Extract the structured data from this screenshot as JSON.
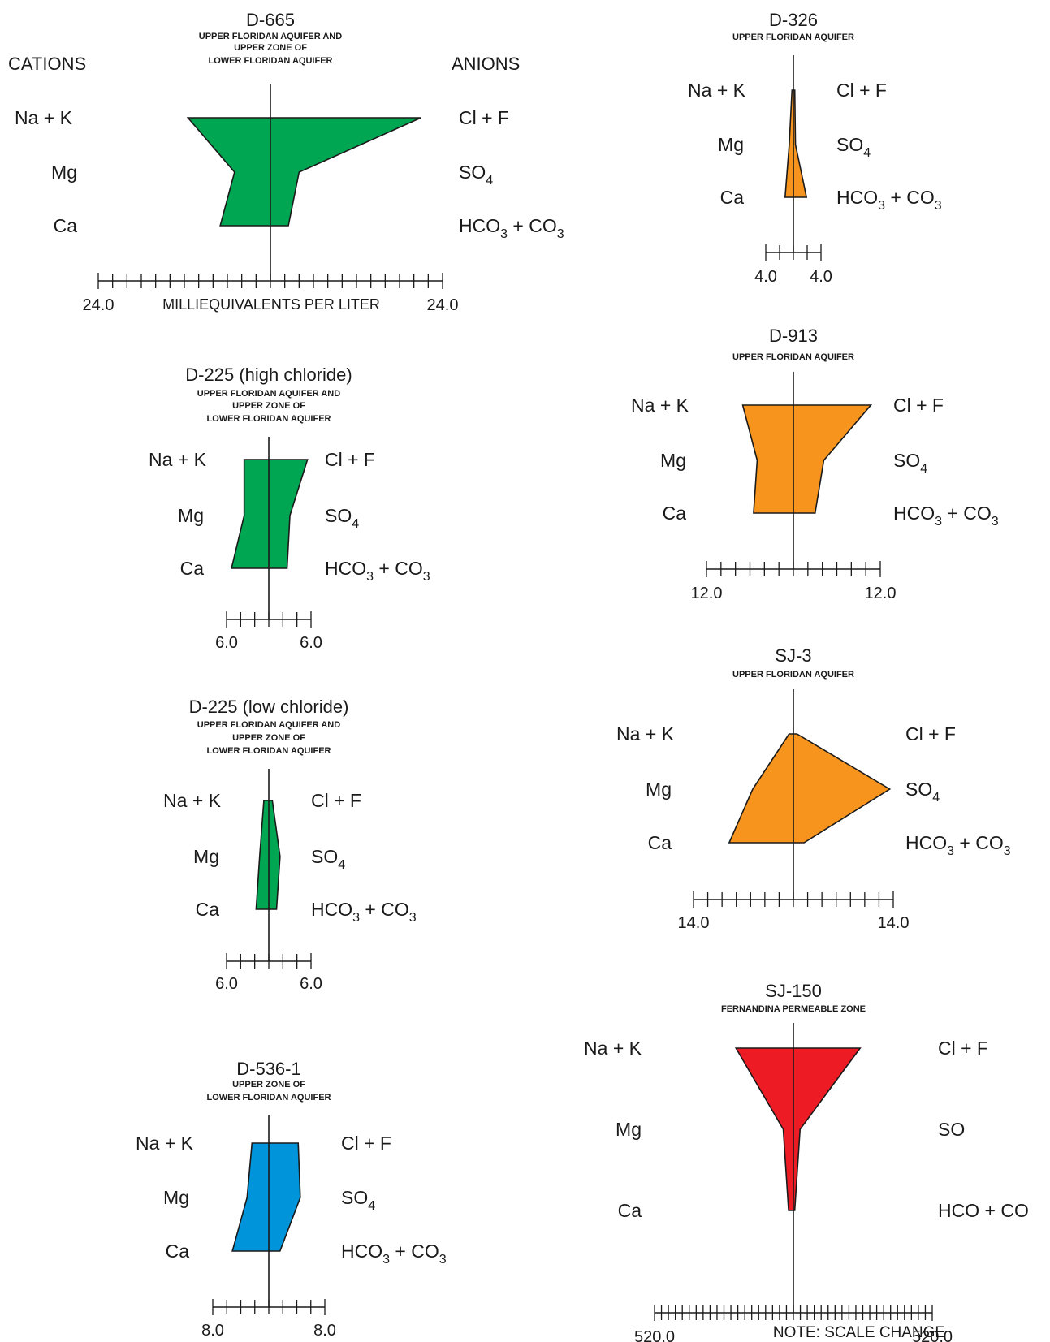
{
  "header": {
    "cations": "CATIONS",
    "anions": "ANIONS",
    "axis_label": "MILLIEQUIVALENTS PER LITER"
  },
  "note": "NOTE: SCALE CHANGE",
  "diagrams": [
    {
      "id": "D-665",
      "title": "D-665",
      "subtitle": [
        "UPPER FLORIDAN AQUIFER AND",
        "UPPER ZONE OF",
        "LOWER FLORIDAN AQUIFER"
      ],
      "scale": "24.0",
      "scale_max": 24,
      "color": "#00a651",
      "cations": {
        "Na + K": 11.5,
        "Mg": 5.0,
        "Ca": 7.0
      },
      "anions": {
        "Cl + F": 21.0,
        "SO4": 4.0,
        "HCO3 + CO3": 2.5
      },
      "labels": {
        "na_k": "Na + K",
        "mg": "Mg",
        "ca": "Ca",
        "cl_f": "Cl + F",
        "so4_base": "SO",
        "so4_sub": "4",
        "hco3_a": "HCO",
        "hco3_sub1": "3",
        "hco3_b": " + CO",
        "hco3_sub2": "3"
      }
    },
    {
      "id": "D-225H",
      "title": "D-225 (high chloride)",
      "subtitle": [
        "UPPER FLORIDAN AQUIFER AND",
        "UPPER ZONE OF",
        "LOWER FLORIDAN AQUIFER"
      ],
      "scale": "6.0",
      "scale_max": 6,
      "color": "#00a651",
      "cations": {
        "Na + K": 3.5,
        "Mg": 3.5,
        "Ca": 5.3
      },
      "anions": {
        "Cl + F": 5.5,
        "SO4": 3.0,
        "HCO3 + CO3": 2.6
      },
      "labels": {
        "na_k": "Na + K",
        "mg": "Mg",
        "ca": "Ca",
        "cl_f": "Cl + F",
        "so4_base": "SO",
        "so4_sub": "4",
        "hco3_a": "HCO",
        "hco3_sub1": "3",
        "hco3_b": " + CO",
        "hco3_sub2": "3"
      }
    },
    {
      "id": "D-225L",
      "title": "D-225 (low chloride)",
      "subtitle": [
        "UPPER FLORIDAN AQUIFER AND",
        "UPPER ZONE OF",
        "LOWER FLORIDAN AQUIFER"
      ],
      "scale": "6.0",
      "scale_max": 6,
      "color": "#00a651",
      "cations": {
        "Na + K": 0.7,
        "Mg": 1.3,
        "Ca": 1.8
      },
      "anions": {
        "Cl + F": 0.5,
        "SO4": 1.6,
        "HCO3 + CO3": 1.1
      },
      "labels": {
        "na_k": "Na + K",
        "mg": "Mg",
        "ca": "Ca",
        "cl_f": "Cl + F",
        "so4_base": "SO",
        "so4_sub": "4",
        "hco3_a": "HCO",
        "hco3_sub1": "3",
        "hco3_b": " + CO",
        "hco3_sub2": "3"
      }
    },
    {
      "id": "D-536-1",
      "title": "D-536-1",
      "subtitle": [
        "UPPER ZONE OF",
        "LOWER FLORIDAN AQUIFER"
      ],
      "scale": "8.0",
      "scale_max": 8,
      "color": "#0095da",
      "cations": {
        "Na + K": 2.4,
        "Mg": 3.1,
        "Ca": 5.2
      },
      "anions": {
        "Cl + F": 4.2,
        "SO4": 4.5,
        "HCO3 + CO3": 1.6
      },
      "labels": {
        "na_k": "Na + K",
        "mg": "Mg",
        "ca": "Ca",
        "cl_f": "Cl + F",
        "so4_base": "SO",
        "so4_sub": "4",
        "hco3_a": "HCO",
        "hco3_sub1": "3",
        "hco3_b": " + CO",
        "hco3_sub2": "3"
      }
    },
    {
      "id": "D-326",
      "title": "D-326",
      "subtitle": [
        "UPPER FLORIDAN AQUIFER"
      ],
      "scale": "4.0",
      "scale_max": 4,
      "color": "#f7941d",
      "cations": {
        "Na + K": 0.2,
        "Mg": 0.6,
        "Ca": 1.2
      },
      "anions": {
        "Cl + F": 0.2,
        "SO4": 0.3,
        "HCO3 + CO3": 1.9
      },
      "labels": {
        "na_k": "Na + K",
        "mg": "Mg",
        "ca": "Ca",
        "cl_f": "Cl + F",
        "so4_base": "SO",
        "so4_sub": "4",
        "hco3_a": "HCO",
        "hco3_sub1": "3",
        "hco3_b": " + CO",
        "hco3_sub2": "3"
      }
    },
    {
      "id": "D-913",
      "title": "D-913",
      "subtitle": [
        "UPPER FLORIDAN AQUIFER"
      ],
      "scale": "12.0",
      "scale_max": 12,
      "color": "#f7941d",
      "cations": {
        "Na + K": 7.0,
        "Mg": 5.0,
        "Ca": 5.5
      },
      "anions": {
        "Cl + F": 10.7,
        "SO4": 4.2,
        "HCO3 + CO3": 3.0
      },
      "labels": {
        "na_k": "Na + K",
        "mg": "Mg",
        "ca": "Ca",
        "cl_f": "Cl + F",
        "so4_base": "SO",
        "so4_sub": "4",
        "hco3_a": "HCO",
        "hco3_sub1": "3",
        "hco3_b": " + CO",
        "hco3_sub2": "3"
      }
    },
    {
      "id": "SJ-3",
      "title": "SJ-3",
      "subtitle": [
        "UPPER FLORIDAN AQUIFER"
      ],
      "scale": "14.0",
      "scale_max": 14,
      "color": "#f7941d",
      "cations": {
        "Na + K": 0.6,
        "Mg": 5.7,
        "Ca": 9.0
      },
      "anions": {
        "Cl + F": 0.5,
        "SO4": 13.5,
        "HCO3 + CO3": 1.5
      },
      "labels": {
        "na_k": "Na + K",
        "mg": "Mg",
        "ca": "Ca",
        "cl_f": "Cl + F",
        "so4_base": "SO",
        "so4_sub": "4",
        "hco3_a": "HCO",
        "hco3_sub1": "3",
        "hco3_b": " + CO",
        "hco3_sub2": "3"
      }
    },
    {
      "id": "SJ-150",
      "title": "SJ-150",
      "subtitle": [
        "FERNANDINA PERMEABLE ZONE"
      ],
      "scale": "520.0",
      "scale_max": 520,
      "color": "#ed1c24",
      "cations": {
        "Na + K": 215,
        "Mg": 38,
        "Ca": 18
      },
      "anions": {
        "Cl + F": 250,
        "SO4": 25,
        "HCO3 + CO3": 5
      },
      "labels": {
        "na_k": "Na + K",
        "mg": "Mg",
        "ca": "Ca",
        "cl_f": "Cl + F",
        "so4_base": "SO",
        "so4_sub": "",
        "hco3_a": "HCO",
        "hco3_sub1": "",
        "hco3_b": "   + CO",
        "hco3_sub2": ""
      }
    }
  ]
}
